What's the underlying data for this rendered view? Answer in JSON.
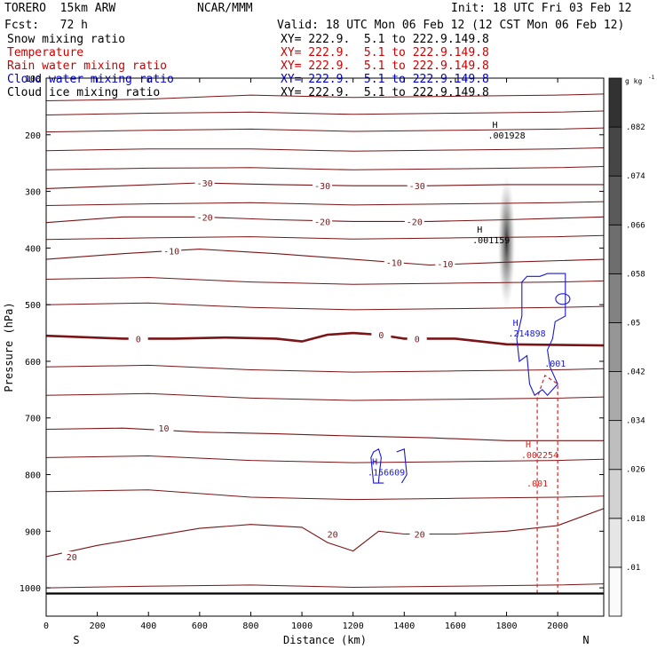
{
  "header": {
    "model": "TORERO  15km ARW",
    "center": "NCAR/MMM",
    "init": "Init: 18 UTC Fri 03 Feb 12",
    "fcst": "Fcst:   72 h",
    "valid": "Valid: 18 UTC Mon 06 Feb 12 (12 CST Mon 06 Feb 12)"
  },
  "fields": [
    {
      "name": "Snow mixing ratio",
      "xy": "XY= 222.9.  5.1 to 222.9.149.8",
      "color": "#000000"
    },
    {
      "name": "Temperature",
      "xy": "XY= 222.9.  5.1 to 222.9.149.8",
      "color": "#cc0000"
    },
    {
      "name": "Rain water mixing ratio",
      "xy": "XY= 222.9.  5.1 to 222.9.149.8",
      "color": "#cc0000"
    },
    {
      "name": "Cloud water mixing ratio",
      "xy": "XY= 222.9.  5.1 to 222.9.149.8",
      "color": "#0000cc"
    },
    {
      "name": "Cloud ice mixing ratio",
      "xy": "XY= 222.9.  5.1 to 222.9.149.8",
      "color": "#000000"
    }
  ],
  "colors": {
    "temperature": "#7a1416",
    "rain": "#e0201c",
    "cloud_water": "#1a1ad0",
    "snow": "#000000"
  },
  "chart_data": {
    "type": "contour-cross-section",
    "xlabel": "Distance (km)",
    "ylabel": "Pressure (hPa)",
    "xlim": [
      0,
      2180
    ],
    "ylim": [
      1050,
      100
    ],
    "x_ticks": [
      0,
      200,
      400,
      600,
      800,
      1000,
      1200,
      1400,
      1600,
      1800,
      2000
    ],
    "y_ticks": [
      100,
      200,
      300,
      400,
      500,
      600,
      700,
      800,
      900,
      1000
    ],
    "direction_left": "S",
    "direction_right": "N",
    "colorbar": {
      "unit": "g kg",
      "unit_exp": "-1",
      "ticks": [
        ".01",
        ".018",
        ".026",
        ".034",
        ".042",
        ".05",
        ".058",
        ".066",
        ".074",
        ".082"
      ]
    },
    "temperature_contours": [
      {
        "label": "-30",
        "points": [
          [
            0,
            295
          ],
          [
            300,
            290
          ],
          [
            600,
            285
          ],
          [
            900,
            288
          ],
          [
            1200,
            290
          ],
          [
            1500,
            290
          ],
          [
            1800,
            288
          ],
          [
            2180,
            288
          ]
        ]
      },
      {
        "label": "-20",
        "points": [
          [
            0,
            355
          ],
          [
            300,
            345
          ],
          [
            600,
            345
          ],
          [
            900,
            350
          ],
          [
            1200,
            353
          ],
          [
            1500,
            353
          ],
          [
            1800,
            350
          ],
          [
            2180,
            345
          ]
        ]
      },
      {
        "label": "-10",
        "points": [
          [
            0,
            420
          ],
          [
            300,
            410
          ],
          [
            600,
            402
          ],
          [
            900,
            410
          ],
          [
            1200,
            420
          ],
          [
            1500,
            430
          ],
          [
            1800,
            425
          ],
          [
            2180,
            420
          ]
        ]
      },
      {
        "label": "0",
        "points": [
          [
            0,
            555
          ],
          [
            300,
            560
          ],
          [
            500,
            560
          ],
          [
            700,
            558
          ],
          [
            900,
            560
          ],
          [
            1000,
            565
          ],
          [
            1100,
            553
          ],
          [
            1200,
            550
          ],
          [
            1300,
            553
          ],
          [
            1400,
            560
          ],
          [
            1600,
            560
          ],
          [
            1800,
            570
          ],
          [
            2180,
            572
          ]
        ]
      },
      {
        "label": "10",
        "points": [
          [
            0,
            720
          ],
          [
            300,
            718
          ],
          [
            600,
            725
          ],
          [
            900,
            728
          ],
          [
            1200,
            732
          ],
          [
            1500,
            735
          ],
          [
            1800,
            740
          ],
          [
            2180,
            740
          ]
        ]
      },
      {
        "label": "20",
        "points": [
          [
            0,
            945
          ],
          [
            200,
            925
          ],
          [
            400,
            910
          ],
          [
            600,
            895
          ],
          [
            800,
            888
          ],
          [
            1000,
            893
          ],
          [
            1100,
            920
          ],
          [
            1200,
            935
          ],
          [
            1300,
            900
          ],
          [
            1400,
            905
          ],
          [
            1600,
            905
          ],
          [
            1800,
            900
          ],
          [
            2000,
            890
          ],
          [
            2180,
            860
          ]
        ]
      }
    ],
    "temperature_contour_labels": [
      {
        "text": "-30",
        "x": 620,
        "p": 285
      },
      {
        "text": "-30",
        "x": 1080,
        "p": 290
      },
      {
        "text": "-30",
        "x": 1450,
        "p": 290
      },
      {
        "text": "-20",
        "x": 620,
        "p": 345
      },
      {
        "text": "-20",
        "x": 1080,
        "p": 353
      },
      {
        "text": "-20",
        "x": 1440,
        "p": 353
      },
      {
        "text": "-10",
        "x": 490,
        "p": 405
      },
      {
        "text": "-10",
        "x": 1360,
        "p": 425
      },
      {
        "text": "-10",
        "x": 1560,
        "p": 428
      },
      {
        "text": "0",
        "x": 360,
        "p": 560
      },
      {
        "text": "0",
        "x": 1310,
        "p": 553
      },
      {
        "text": "0",
        "x": 1450,
        "p": 560
      },
      {
        "text": "10",
        "x": 460,
        "p": 718
      },
      {
        "text": "20",
        "x": 1120,
        "p": 905
      },
      {
        "text": "20",
        "x": 1460,
        "p": 905
      },
      {
        "text": "20",
        "x": 100,
        "p": 945
      }
    ],
    "maxima_labels": [
      {
        "field": "snow",
        "text": ".001928",
        "x": 1800,
        "p": 200
      },
      {
        "field": "snow",
        "text": ".001159",
        "x": 1740,
        "p": 385
      },
      {
        "field": "cloud_water",
        "text": ".214898",
        "x": 1880,
        "p": 550
      },
      {
        "field": "rain",
        "text": ".002254",
        "x": 1930,
        "p": 765
      },
      {
        "field": "cloud_water",
        "text": ".156609",
        "x": 1330,
        "p": 795
      },
      {
        "field": "cloud_water",
        "text": ".001",
        "x": 1990,
        "p": 603
      },
      {
        "field": "rain",
        "text": ".001",
        "x": 1920,
        "p": 815
      }
    ],
    "ground_pressure_hpa": 1010
  }
}
